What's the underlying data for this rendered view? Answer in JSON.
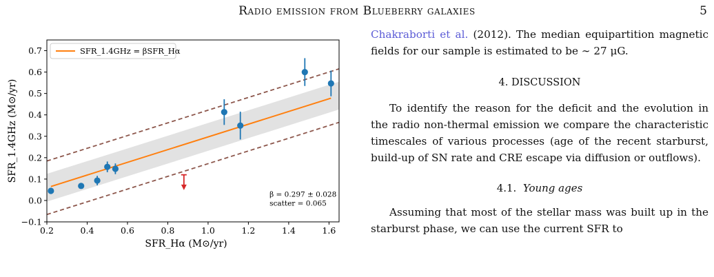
{
  "header": {
    "title": "Radio emission from Blueberry galaxies",
    "page": "5"
  },
  "chart_data": {
    "type": "scatter",
    "xlabel": "SFR_Hα (M⊙/yr)",
    "ylabel": "SFR_1.4GHz (M⊙/yr)",
    "xlim": [
      0.2,
      1.65
    ],
    "ylim": [
      -0.1,
      0.75
    ],
    "xticks": [
      0.2,
      0.4,
      0.6,
      0.8,
      1.0,
      1.2,
      1.4,
      1.6
    ],
    "yticks": [
      -0.1,
      0.0,
      0.1,
      0.2,
      0.3,
      0.4,
      0.5,
      0.6,
      0.7
    ],
    "xtick_labels": [
      "0.2",
      "0.4",
      "0.6",
      "0.8",
      "1.0",
      "1.2",
      "1.4",
      "1.6"
    ],
    "ytick_labels": [
      "−0.1",
      "0.0",
      "0.1",
      "0.2",
      "0.3",
      "0.4",
      "0.5",
      "0.6",
      "0.7"
    ],
    "points": [
      {
        "x": 0.22,
        "y": 0.045,
        "err": 0.0
      },
      {
        "x": 0.37,
        "y": 0.068,
        "err": 0.0
      },
      {
        "x": 0.45,
        "y": 0.093,
        "err": 0.022
      },
      {
        "x": 0.5,
        "y": 0.157,
        "err": 0.025
      },
      {
        "x": 0.54,
        "y": 0.148,
        "err": 0.025
      },
      {
        "x": 1.08,
        "y": 0.413,
        "err": 0.06
      },
      {
        "x": 1.16,
        "y": 0.35,
        "err": 0.065
      },
      {
        "x": 1.48,
        "y": 0.6,
        "err": 0.065
      },
      {
        "x": 1.61,
        "y": 0.547,
        "err": 0.06
      }
    ],
    "upper_limit": {
      "x": 0.88,
      "y": 0.12,
      "y_end": 0.055
    },
    "fit": {
      "beta": 0.297,
      "x_range": [
        0.22,
        1.61
      ],
      "scatter": 0.065
    },
    "dashed": [
      {
        "intercept": 0.125
      },
      {
        "intercept": -0.125
      }
    ],
    "legend": {
      "label": "SFR_1.4GHz = βSFR_Hα",
      "position": "upper-left"
    },
    "annotation": [
      "β = 0.297 ± 0.028",
      "scatter = 0.065"
    ],
    "colors": {
      "points": "#1f77b4",
      "fit": "#ff7f0e",
      "dashed": "#8c564b",
      "band": "#e2e2e2",
      "limit": "#d62728"
    }
  },
  "text": {
    "p1a": "Chakraborti et al.",
    "p1b": " (2012).  The median equipartition magnetic fields for our sample is estimated to be ∼ 27 μG.",
    "sec4": "4. DISCUSSION",
    "p2": "To identify the reason for the deficit and the evolution in the radio non-thermal emission we compare the characteristic timescales of various processes (age of the recent starburst, build-up of SN rate and CRE escape via diffusion or outflows).",
    "sec41": "4.1.",
    "sec41title": "Young ages",
    "p3": "Assuming that most of the stellar mass was built up in the starburst phase, we can use the current SFR to"
  }
}
